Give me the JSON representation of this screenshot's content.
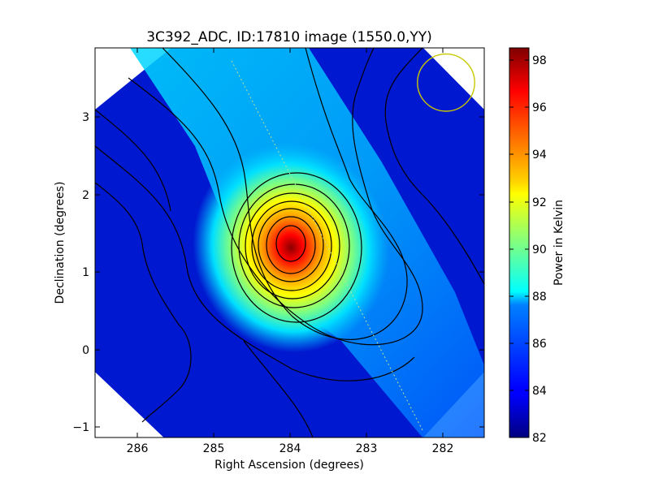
{
  "chart_data": {
    "type": "heatmap",
    "title": "3C392_ADC, ID:17810 image (1550.0,YY)",
    "xlabel": "Right Ascension (degrees)",
    "ylabel": "Declination (degrees)",
    "xlim": [
      286.6,
      281.5
    ],
    "ylim": [
      -1.15,
      3.9
    ],
    "x_ticks": [
      286,
      285,
      284,
      283,
      282
    ],
    "y_ticks": [
      -1,
      0,
      1,
      2,
      3
    ],
    "x_tick_labels": [
      "286",
      "285",
      "284",
      "283",
      "282"
    ],
    "y_tick_labels": [
      "−1",
      "0",
      "1",
      "2",
      "3"
    ],
    "colorbar": {
      "label": "Power in Kelvin",
      "range": [
        82,
        98.5
      ],
      "ticks": [
        82,
        84,
        86,
        88,
        90,
        92,
        94,
        96,
        98
      ],
      "tick_labels": [
        "82",
        "84",
        "86",
        "88",
        "90",
        "92",
        "94",
        "96",
        "98"
      ],
      "colormap": "jet"
    },
    "peak": {
      "ra": 284.0,
      "dec": 1.35,
      "value": 98.5
    },
    "field_boundary": [
      {
        "ra": 285.6,
        "dec": 3.9
      },
      {
        "ra": 282.3,
        "dec": 3.9
      },
      {
        "ra": 281.5,
        "dec": 3.1
      },
      {
        "ra": 281.5,
        "dec": -0.3
      },
      {
        "ra": 282.3,
        "dec": -1.15
      },
      {
        "ra": 285.7,
        "dec": -1.15
      },
      {
        "ra": 286.6,
        "dec": -0.3
      },
      {
        "ra": 286.6,
        "dec": 3.1
      }
    ],
    "beam_circle": {
      "ra": 282.0,
      "dec": 3.45,
      "radius_deg": 0.37,
      "color": "#c8c800"
    },
    "grid": false,
    "background_level": 84
  }
}
